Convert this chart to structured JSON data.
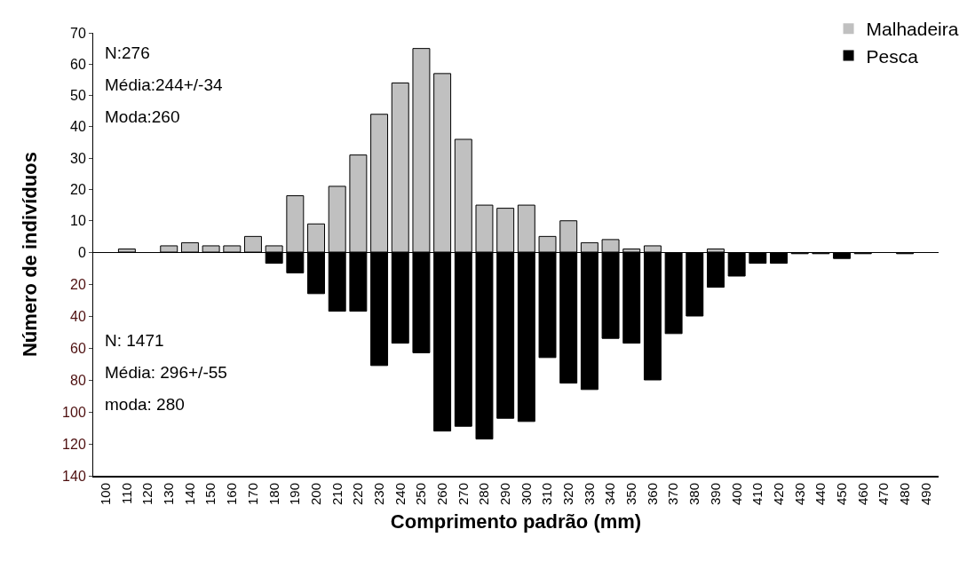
{
  "chart_data": [
    {
      "type": "bar",
      "ylabel": "Número de indivíduos",
      "categories": [
        "100",
        "110",
        "120",
        "130",
        "140",
        "150",
        "160",
        "170",
        "180",
        "190",
        "200",
        "210",
        "220",
        "230",
        "240",
        "250",
        "260",
        "270",
        "280",
        "290",
        "300",
        "310",
        "320",
        "330",
        "340",
        "350",
        "360",
        "370",
        "380",
        "390",
        "400",
        "410",
        "420",
        "430",
        "440",
        "450",
        "460",
        "470",
        "480",
        "490"
      ],
      "series": [
        {
          "name": "Malhadeira",
          "color": "#c0c0c0",
          "values": [
            null,
            1,
            null,
            2,
            3,
            2,
            2,
            5,
            2,
            18,
            9,
            21,
            31,
            44,
            54,
            65,
            57,
            36,
            15,
            14,
            15,
            5,
            10,
            3,
            4,
            1,
            2,
            null,
            null,
            1,
            null,
            null,
            null,
            null,
            null,
            null,
            null,
            null,
            null,
            null
          ]
        }
      ],
      "ylim": [
        0,
        70
      ],
      "yticks": [
        0,
        10,
        20,
        30,
        40,
        50,
        60,
        70
      ],
      "tick_labels": "y",
      "legend": "top right",
      "annotations": [
        "N:276",
        "Média:244+/-34",
        "Moda:260"
      ]
    },
    {
      "type": "bar",
      "xlabel": "Comprimento padrão (mm)",
      "categories": [
        "100",
        "110",
        "120",
        "130",
        "140",
        "150",
        "160",
        "170",
        "180",
        "190",
        "200",
        "210",
        "220",
        "230",
        "240",
        "250",
        "260",
        "270",
        "280",
        "290",
        "300",
        "310",
        "320",
        "330",
        "340",
        "350",
        "360",
        "370",
        "380",
        "390",
        "400",
        "410",
        "420",
        "430",
        "440",
        "450",
        "460",
        "470",
        "480",
        "490"
      ],
      "series": [
        {
          "name": "Pesca",
          "color": "#000000",
          "values": [
            0,
            0,
            0,
            0,
            0,
            0,
            0,
            0,
            7,
            13,
            26,
            37,
            37,
            71,
            57,
            63,
            112,
            109,
            117,
            104,
            106,
            66,
            82,
            86,
            54,
            57,
            80,
            51,
            40,
            22,
            15,
            7,
            7,
            1,
            1,
            4,
            1,
            0,
            1,
            0
          ]
        }
      ],
      "ylim": [
        140,
        0
      ],
      "yticks": [
        {
          "value": 0,
          "label": null
        },
        20,
        40,
        60,
        80,
        100,
        120,
        140
      ],
      "legend": "top right",
      "annotations": [
        "N: 1471",
        "Média: 296+/-55",
        "moda: 280"
      ]
    }
  ]
}
